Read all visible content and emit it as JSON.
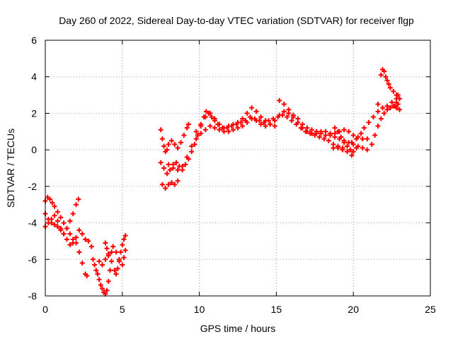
{
  "chart_data": {
    "type": "scatter",
    "title": "Day 260 of 2022, Sidereal Day-to-day VTEC variation (SDTVAR) for receiver flgp",
    "xlabel": "GPS time / hours",
    "ylabel": "SDTVAR / TECUs",
    "xlim": [
      0,
      25
    ],
    "ylim": [
      -8,
      6
    ],
    "x_ticks": [
      0,
      5,
      10,
      15,
      20,
      25
    ],
    "y_ticks": [
      -8,
      -6,
      -4,
      -2,
      0,
      2,
      4,
      6
    ],
    "x_tick_labels": [
      "0",
      "5",
      "10",
      "15",
      "20",
      "25"
    ],
    "y_tick_labels": [
      "-8",
      "-6",
      "-4",
      "-2",
      "0",
      "2",
      "4",
      "6"
    ],
    "grid": true,
    "marker": "plus",
    "color": "#ff0000",
    "series": [
      {
        "points": [
          [
            0.0,
            -2.8
          ],
          [
            0.15,
            -2.6
          ],
          [
            0.3,
            -2.7
          ],
          [
            0.45,
            -2.9
          ],
          [
            0.6,
            -3.1
          ],
          [
            0.8,
            -3.4
          ],
          [
            1.0,
            -3.7
          ],
          [
            1.2,
            -4.0
          ],
          [
            1.4,
            -4.3
          ],
          [
            1.6,
            -4.6
          ],
          [
            1.8,
            -4.9
          ],
          [
            2.0,
            -5.1
          ],
          [
            2.2,
            -5.6
          ],
          [
            2.4,
            -6.2
          ],
          [
            2.6,
            -6.8
          ],
          [
            2.7,
            -6.9
          ],
          [
            0.0,
            -3.5
          ],
          [
            0.2,
            -3.8
          ],
          [
            0.4,
            -4.0
          ],
          [
            0.6,
            -4.1
          ],
          [
            0.8,
            -4.2
          ],
          [
            1.0,
            -4.4
          ],
          [
            1.2,
            -4.6
          ],
          [
            1.4,
            -4.3
          ],
          [
            1.6,
            -3.9
          ],
          [
            1.8,
            -3.5
          ],
          [
            2.0,
            -3.0
          ],
          [
            2.15,
            -2.7
          ],
          [
            0.0,
            -4.2
          ],
          [
            0.2,
            -4.0
          ],
          [
            0.4,
            -3.8
          ],
          [
            0.6,
            -3.6
          ],
          [
            0.8,
            -3.9
          ],
          [
            1.0,
            -4.3
          ],
          [
            1.2,
            -4.6
          ],
          [
            1.4,
            -4.9
          ],
          [
            1.6,
            -5.2
          ],
          [
            1.8,
            -5.1
          ],
          [
            2.0,
            -4.8
          ],
          [
            2.2,
            -4.4
          ],
          [
            2.4,
            -4.6
          ],
          [
            2.6,
            -4.9
          ],
          [
            2.8,
            -5.0
          ],
          [
            3.0,
            -5.3
          ],
          [
            3.1,
            -6.0
          ],
          [
            3.2,
            -6.3
          ],
          [
            3.3,
            -6.6
          ],
          [
            3.4,
            -6.8
          ],
          [
            3.5,
            -7.1
          ],
          [
            3.6,
            -7.4
          ],
          [
            3.7,
            -7.6
          ],
          [
            3.8,
            -7.8
          ],
          [
            3.9,
            -7.9
          ],
          [
            4.0,
            -7.7
          ],
          [
            4.1,
            -7.2
          ],
          [
            4.2,
            -6.6
          ],
          [
            3.5,
            -6.1
          ],
          [
            3.7,
            -6.3
          ],
          [
            3.9,
            -6.0
          ],
          [
            4.1,
            -5.7
          ],
          [
            4.3,
            -6.1
          ],
          [
            4.5,
            -6.6
          ],
          [
            4.6,
            -6.8
          ],
          [
            4.7,
            -6.5
          ],
          [
            4.8,
            -6.0
          ],
          [
            4.9,
            -5.6
          ],
          [
            5.0,
            -5.2
          ],
          [
            5.1,
            -4.9
          ],
          [
            5.2,
            -4.7
          ],
          [
            3.9,
            -5.1
          ],
          [
            4.0,
            -5.4
          ],
          [
            4.1,
            -5.8
          ],
          [
            4.3,
            -5.6
          ],
          [
            4.4,
            -5.3
          ],
          [
            4.6,
            -5.6
          ],
          [
            4.8,
            -6.1
          ],
          [
            5.0,
            -6.3
          ],
          [
            5.1,
            -5.9
          ],
          [
            5.2,
            -5.5
          ],
          [
            7.5,
            1.1
          ],
          [
            7.6,
            0.6
          ],
          [
            7.7,
            0.2
          ],
          [
            7.8,
            -0.1
          ],
          [
            7.9,
            0.0
          ],
          [
            8.0,
            0.3
          ],
          [
            8.2,
            0.5
          ],
          [
            8.4,
            0.3
          ],
          [
            8.6,
            0.1
          ],
          [
            8.8,
            0.4
          ],
          [
            9.0,
            0.8
          ],
          [
            9.2,
            1.2
          ],
          [
            9.3,
            1.4
          ],
          [
            7.5,
            -0.7
          ],
          [
            7.7,
            -1.0
          ],
          [
            7.9,
            -1.3
          ],
          [
            8.1,
            -1.1
          ],
          [
            8.3,
            -0.8
          ],
          [
            8.5,
            -0.7
          ],
          [
            8.7,
            -0.9
          ],
          [
            8.9,
            -1.1
          ],
          [
            9.1,
            -0.8
          ],
          [
            9.3,
            -0.5
          ],
          [
            9.5,
            -0.1
          ],
          [
            9.7,
            0.3
          ],
          [
            9.9,
            0.8
          ],
          [
            10.1,
            1.3
          ],
          [
            10.3,
            1.8
          ],
          [
            10.45,
            2.1
          ],
          [
            10.6,
            2.0
          ],
          [
            10.8,
            1.8
          ],
          [
            11.0,
            1.6
          ],
          [
            11.2,
            1.4
          ],
          [
            11.5,
            1.2
          ],
          [
            11.8,
            1.2
          ],
          [
            12.1,
            1.3
          ],
          [
            12.4,
            1.4
          ],
          [
            12.7,
            1.5
          ],
          [
            13.0,
            1.6
          ],
          [
            13.3,
            1.8
          ],
          [
            13.6,
            1.7
          ],
          [
            13.9,
            1.6
          ],
          [
            14.2,
            1.5
          ],
          [
            14.5,
            1.6
          ],
          [
            14.8,
            1.7
          ],
          [
            15.1,
            1.8
          ],
          [
            15.4,
            1.9
          ],
          [
            15.7,
            1.8
          ],
          [
            16.0,
            1.6
          ],
          [
            16.3,
            1.4
          ],
          [
            16.6,
            1.2
          ],
          [
            16.9,
            1.0
          ],
          [
            17.2,
            0.9
          ],
          [
            17.5,
            0.8
          ],
          [
            17.8,
            0.7
          ],
          [
            18.1,
            0.6
          ],
          [
            18.4,
            0.5
          ],
          [
            18.7,
            0.3
          ],
          [
            19.0,
            0.2
          ],
          [
            19.3,
            0.1
          ],
          [
            19.6,
            -0.1
          ],
          [
            19.9,
            -0.3
          ],
          [
            7.6,
            -1.9
          ],
          [
            7.8,
            -2.1
          ],
          [
            8.0,
            -1.9
          ],
          [
            8.2,
            -1.8
          ],
          [
            8.4,
            -1.9
          ],
          [
            8.6,
            -1.7
          ],
          [
            8.0,
            -0.8
          ],
          [
            8.3,
            -1.0
          ],
          [
            8.6,
            -1.1
          ],
          [
            8.9,
            -0.9
          ],
          [
            9.2,
            -0.4
          ],
          [
            9.5,
            0.2
          ],
          [
            9.8,
            0.6
          ],
          [
            10.1,
            0.9
          ],
          [
            10.4,
            1.1
          ],
          [
            10.7,
            1.3
          ],
          [
            11.0,
            1.2
          ],
          [
            11.3,
            1.1
          ],
          [
            11.6,
            1.0
          ],
          [
            11.9,
            1.0
          ],
          [
            12.2,
            1.1
          ],
          [
            12.5,
            1.2
          ],
          [
            12.8,
            1.3
          ],
          [
            13.1,
            1.5
          ],
          [
            13.4,
            1.7
          ],
          [
            13.7,
            1.6
          ],
          [
            14.0,
            1.4
          ],
          [
            14.3,
            1.3
          ],
          [
            14.6,
            1.4
          ],
          [
            14.9,
            1.6
          ],
          [
            15.2,
            1.9
          ],
          [
            15.5,
            2.1
          ],
          [
            15.8,
            2.0
          ],
          [
            16.1,
            1.8
          ],
          [
            16.4,
            1.5
          ],
          [
            16.7,
            1.2
          ],
          [
            17.0,
            1.0
          ],
          [
            17.3,
            0.9
          ],
          [
            17.6,
            0.9
          ],
          [
            17.9,
            0.9
          ],
          [
            18.2,
            0.8
          ],
          [
            18.5,
            0.8
          ],
          [
            18.8,
            0.7
          ],
          [
            19.1,
            0.6
          ],
          [
            19.4,
            0.5
          ],
          [
            19.7,
            0.4
          ],
          [
            20.0,
            0.3
          ],
          [
            20.3,
            0.2
          ],
          [
            20.6,
            0.1
          ],
          [
            20.9,
            0.0
          ],
          [
            21.2,
            0.3
          ],
          [
            21.4,
            0.8
          ],
          [
            21.6,
            1.3
          ],
          [
            21.8,
            1.7
          ],
          [
            22.0,
            2.0
          ],
          [
            22.2,
            2.2
          ],
          [
            22.4,
            2.3
          ],
          [
            22.6,
            2.4
          ],
          [
            22.8,
            2.6
          ],
          [
            9.8,
            1.0
          ],
          [
            10.1,
            1.4
          ],
          [
            10.4,
            1.8
          ],
          [
            10.7,
            2.0
          ],
          [
            11.0,
            1.7
          ],
          [
            11.3,
            1.4
          ],
          [
            11.6,
            1.2
          ],
          [
            11.9,
            1.3
          ],
          [
            12.2,
            1.4
          ],
          [
            12.5,
            1.5
          ],
          [
            12.8,
            1.7
          ],
          [
            13.1,
            2.0
          ],
          [
            13.4,
            2.3
          ],
          [
            13.7,
            2.1
          ],
          [
            14.0,
            1.8
          ],
          [
            14.3,
            1.6
          ],
          [
            14.6,
            1.4
          ],
          [
            14.9,
            1.3
          ],
          [
            15.2,
            2.7
          ],
          [
            15.5,
            2.5
          ],
          [
            15.8,
            2.2
          ],
          [
            16.1,
            1.9
          ],
          [
            16.4,
            1.7
          ],
          [
            16.7,
            1.4
          ],
          [
            17.0,
            1.2
          ],
          [
            17.3,
            1.1
          ],
          [
            17.6,
            1.0
          ],
          [
            17.9,
            1.0
          ],
          [
            18.2,
            1.0
          ],
          [
            18.5,
            0.9
          ],
          [
            18.8,
            0.9
          ],
          [
            19.1,
            1.0
          ],
          [
            19.4,
            1.1
          ],
          [
            19.7,
            1.0
          ],
          [
            20.0,
            0.8
          ],
          [
            20.3,
            0.7
          ],
          [
            20.6,
            0.6
          ],
          [
            20.9,
            0.6
          ],
          [
            18.7,
            0.1
          ],
          [
            19.0,
            0.1
          ],
          [
            19.3,
            0.0
          ],
          [
            19.6,
            0.2
          ],
          [
            19.9,
            0.4
          ],
          [
            20.2,
            0.6
          ],
          [
            20.5,
            0.9
          ],
          [
            20.7,
            1.2
          ],
          [
            21.0,
            1.5
          ],
          [
            21.3,
            1.8
          ],
          [
            21.6,
            2.1
          ],
          [
            21.9,
            2.3
          ],
          [
            22.2,
            2.4
          ],
          [
            22.5,
            2.6
          ],
          [
            22.8,
            2.8
          ],
          [
            22.9,
            3.0
          ],
          [
            18.8,
            1.2
          ],
          [
            19.0,
            1.0
          ],
          [
            19.2,
            0.7
          ],
          [
            19.4,
            0.4
          ],
          [
            19.6,
            0.2
          ],
          [
            19.8,
            0.0
          ],
          [
            20.0,
            -0.1
          ],
          [
            20.2,
            0.1
          ],
          [
            21.6,
            2.5
          ],
          [
            21.8,
            4.1
          ],
          [
            21.9,
            4.4
          ],
          [
            22.0,
            4.3
          ],
          [
            22.1,
            4.0
          ],
          [
            22.2,
            3.8
          ],
          [
            22.3,
            3.6
          ],
          [
            22.4,
            3.4
          ],
          [
            22.6,
            3.2
          ],
          [
            22.8,
            3.0
          ],
          [
            23.0,
            2.8
          ],
          [
            23.0,
            2.2
          ],
          [
            22.9,
            2.5
          ],
          [
            22.8,
            2.3
          ],
          [
            22.7,
            2.4
          ]
        ]
      }
    ]
  }
}
